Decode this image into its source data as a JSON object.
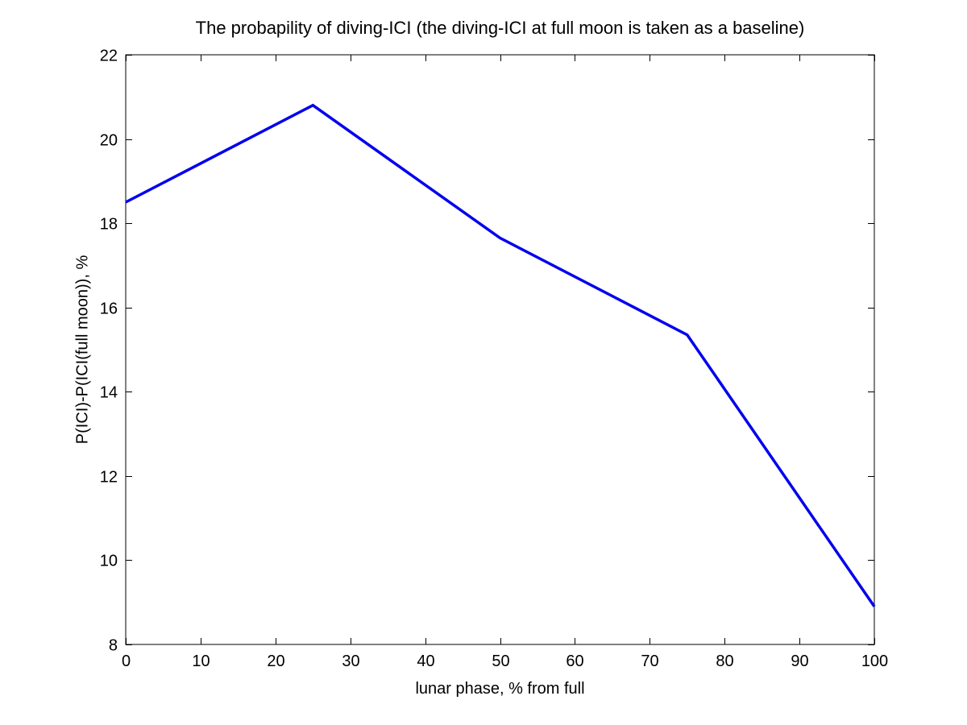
{
  "figure": {
    "background": "#ffffff",
    "axis_color": "#000000"
  },
  "chart_data": {
    "type": "line",
    "title": "The probapility of diving-ICI (the diving-ICI at full moon is taken as a baseline)",
    "xlabel": "lunar phase, % from full",
    "ylabel": "P(ICI)-P(ICI(full moon)), %",
    "x": [
      0,
      25,
      50,
      75,
      100
    ],
    "y": [
      18.5,
      20.8,
      17.65,
      15.35,
      8.9
    ],
    "xlim": [
      0,
      100
    ],
    "ylim": [
      8,
      22
    ],
    "xticks": [
      0,
      10,
      20,
      30,
      40,
      50,
      60,
      70,
      80,
      90,
      100
    ],
    "yticks": [
      8,
      10,
      12,
      14,
      16,
      18,
      20,
      22
    ],
    "line_color": "#0000ee",
    "line_width": 3.5,
    "grid": false,
    "legend_position": "none"
  }
}
